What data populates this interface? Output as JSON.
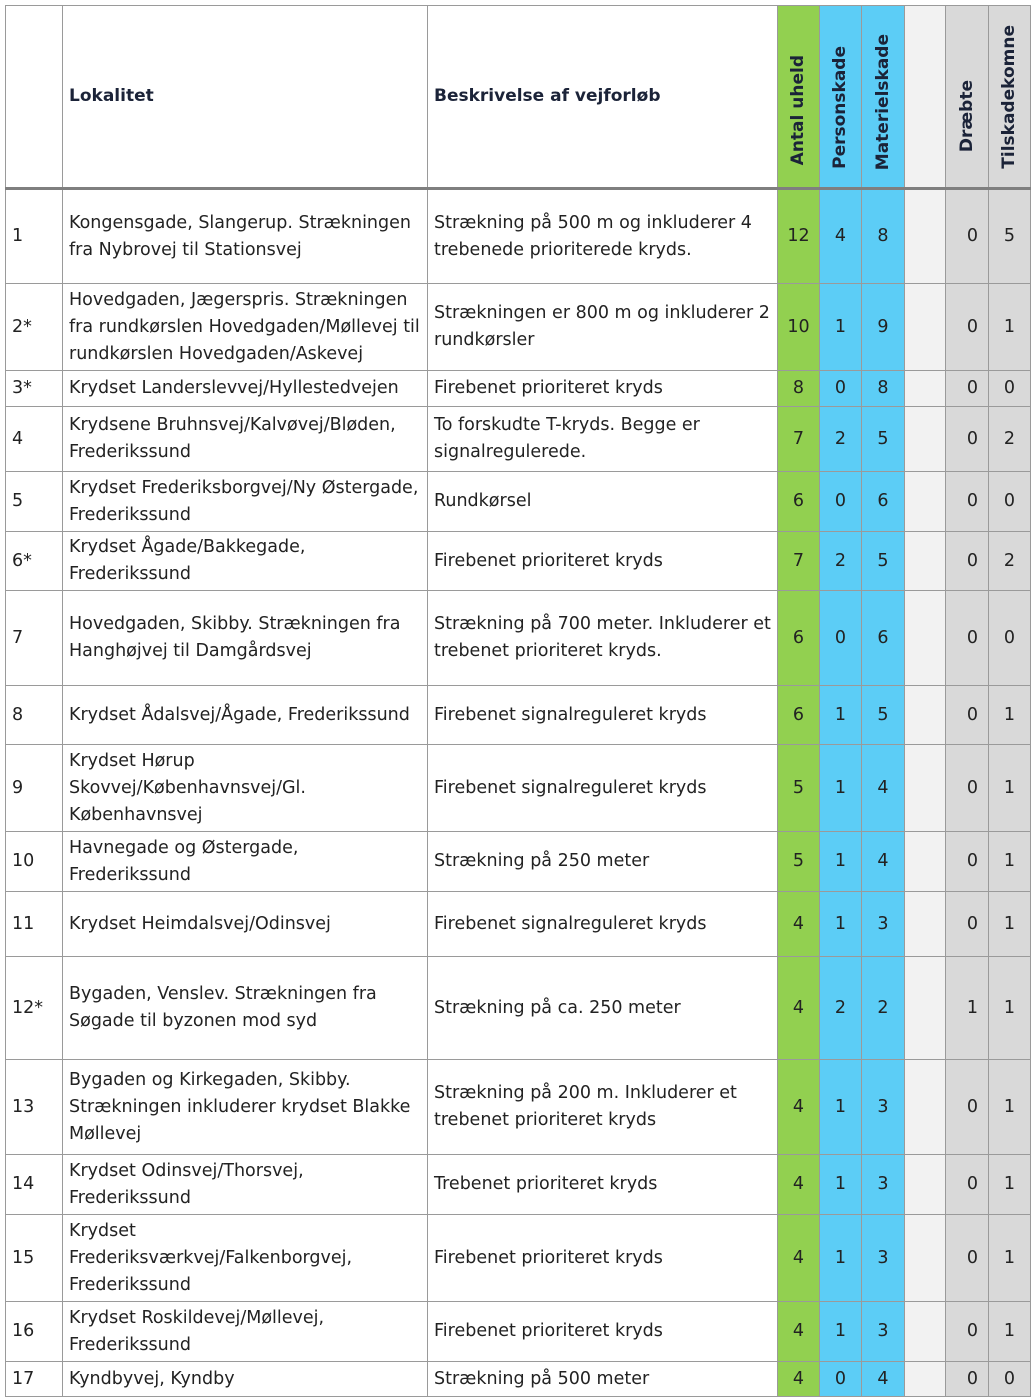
{
  "header": {
    "nr": "",
    "lokalitet": "Lokalitet",
    "beskrivelse": "Beskrivelse af vejforløb",
    "antal_uheld": "Antal uheld",
    "personskade": "Personskade",
    "materielskade": "Materielskade",
    "blank": "",
    "draebte": "Dræbte",
    "tilskadekomne": "Tilskadekomne"
  },
  "colors": {
    "antal_uheld": "#92d050",
    "skade": "#5ccdf6",
    "blank": "#f2f2f2",
    "personer": "#d9d9d9"
  },
  "rows": [
    {
      "nr": "1",
      "lokalitet": "Kongensgade, Slangerup. Strækningen fra Nybrovej til Stationsvej",
      "beskrivelse": "Strækning på 500 m og inkluderer 4 trebenede prioriterede kryds.",
      "antal": "12",
      "person": "4",
      "materiel": "8",
      "draebte": "0",
      "tilskade": "5"
    },
    {
      "nr": "2*",
      "lokalitet": "Hovedgaden, Jægerspris. Strækningen fra rundkørslen Hovedgaden/Møllevej til rundkørslen Hovedgaden/Askevej",
      "beskrivelse": "Strækningen er 800 m og inkluderer 2 rundkørsler",
      "antal": "10",
      "person": "1",
      "materiel": "9",
      "draebte": "0",
      "tilskade": "1"
    },
    {
      "nr": "3*",
      "lokalitet": "Krydset Landerslevvej/Hyllestedvejen",
      "beskrivelse": "Firebenet prioriteret kryds",
      "antal": "8",
      "person": "0",
      "materiel": "8",
      "draebte": "0",
      "tilskade": "0"
    },
    {
      "nr": "4",
      "lokalitet": "Krydsene Bruhnsvej/Kalvøvej/Bløden, Frederikssund",
      "beskrivelse": "To forskudte T-kryds. Begge er signalregulerede.",
      "antal": "7",
      "person": "2",
      "materiel": "5",
      "draebte": "0",
      "tilskade": "2"
    },
    {
      "nr": "5",
      "lokalitet": "Krydset Frederiksborgvej/Ny Østergade, Frederikssund",
      "beskrivelse": "Rundkørsel",
      "antal": "6",
      "person": "0",
      "materiel": "6",
      "draebte": "0",
      "tilskade": "0"
    },
    {
      "nr": "6*",
      "lokalitet": "Krydset Ågade/Bakkegade, Frederikssund",
      "beskrivelse": "Firebenet prioriteret kryds",
      "antal": "7",
      "person": "2",
      "materiel": "5",
      "draebte": "0",
      "tilskade": "2"
    },
    {
      "nr": "7",
      "lokalitet": "Hovedgaden, Skibby. Strækningen fra Hanghøjvej til Damgårdsvej",
      "beskrivelse": "Strækning på 700 meter. Inkluderer et trebenet prioriteret kryds.",
      "antal": "6",
      "person": "0",
      "materiel": "6",
      "draebte": "0",
      "tilskade": "0"
    },
    {
      "nr": "8",
      "lokalitet": "Krydset Ådalsvej/Ågade, Frederikssund",
      "beskrivelse": "Firebenet signalreguleret kryds",
      "antal": "6",
      "person": "1",
      "materiel": "5",
      "draebte": "0",
      "tilskade": "1"
    },
    {
      "nr": "9",
      "lokalitet": "Krydset Hørup Skovvej/Københavnsvej/Gl. Københavnsvej",
      "beskrivelse": "Firebenet signalreguleret kryds",
      "antal": "5",
      "person": "1",
      "materiel": "4",
      "draebte": "0",
      "tilskade": "1"
    },
    {
      "nr": "10",
      "lokalitet": "Havnegade og Østergade, Frederikssund",
      "beskrivelse": "Strækning på 250 meter",
      "antal": "5",
      "person": "1",
      "materiel": "4",
      "draebte": "0",
      "tilskade": "1"
    },
    {
      "nr": "11",
      "lokalitet": "Krydset Heimdalsvej/Odinsvej",
      "beskrivelse": "Firebenet signalreguleret kryds",
      "antal": "4",
      "person": "1",
      "materiel": "3",
      "draebte": "0",
      "tilskade": "1"
    },
    {
      "nr": "12*",
      "lokalitet": "Bygaden, Venslev. Strækningen fra Søgade til byzonen mod syd",
      "beskrivelse": "Strækning på ca. 250 meter",
      "antal": "4",
      "person": "2",
      "materiel": "2",
      "draebte": "1",
      "tilskade": "1"
    },
    {
      "nr": "13",
      "lokalitet": "Bygaden og Kirkegaden, Skibby. Strækningen inkluderer krydset Blakke Møllevej",
      "beskrivelse": "Strækning på 200 m. Inkluderer et trebenet prioriteret kryds",
      "antal": "4",
      "person": "1",
      "materiel": "3",
      "draebte": "0",
      "tilskade": "1"
    },
    {
      "nr": "14",
      "lokalitet": "Krydset Odinsvej/Thorsvej, Frederikssund",
      "beskrivelse": "Trebenet prioriteret kryds",
      "antal": "4",
      "person": "1",
      "materiel": "3",
      "draebte": "0",
      "tilskade": "1"
    },
    {
      "nr": "15",
      "lokalitet": "Krydset Frederiksværkvej/Falkenborgvej, Frederikssund",
      "beskrivelse": "Firebenet prioriteret kryds",
      "antal": "4",
      "person": "1",
      "materiel": "3",
      "draebte": "0",
      "tilskade": "1"
    },
    {
      "nr": "16",
      "lokalitet": "Krydset Roskildevej/Møllevej, Frederikssund",
      "beskrivelse": "Firebenet prioriteret kryds",
      "antal": "4",
      "person": "1",
      "materiel": "3",
      "draebte": "0",
      "tilskade": "1"
    },
    {
      "nr": "17",
      "lokalitet": "Kyndbyvej, Kyndby",
      "beskrivelse": "Strækning på 500 meter",
      "antal": "4",
      "person": "0",
      "materiel": "4",
      "draebte": "0",
      "tilskade": "0"
    }
  ]
}
